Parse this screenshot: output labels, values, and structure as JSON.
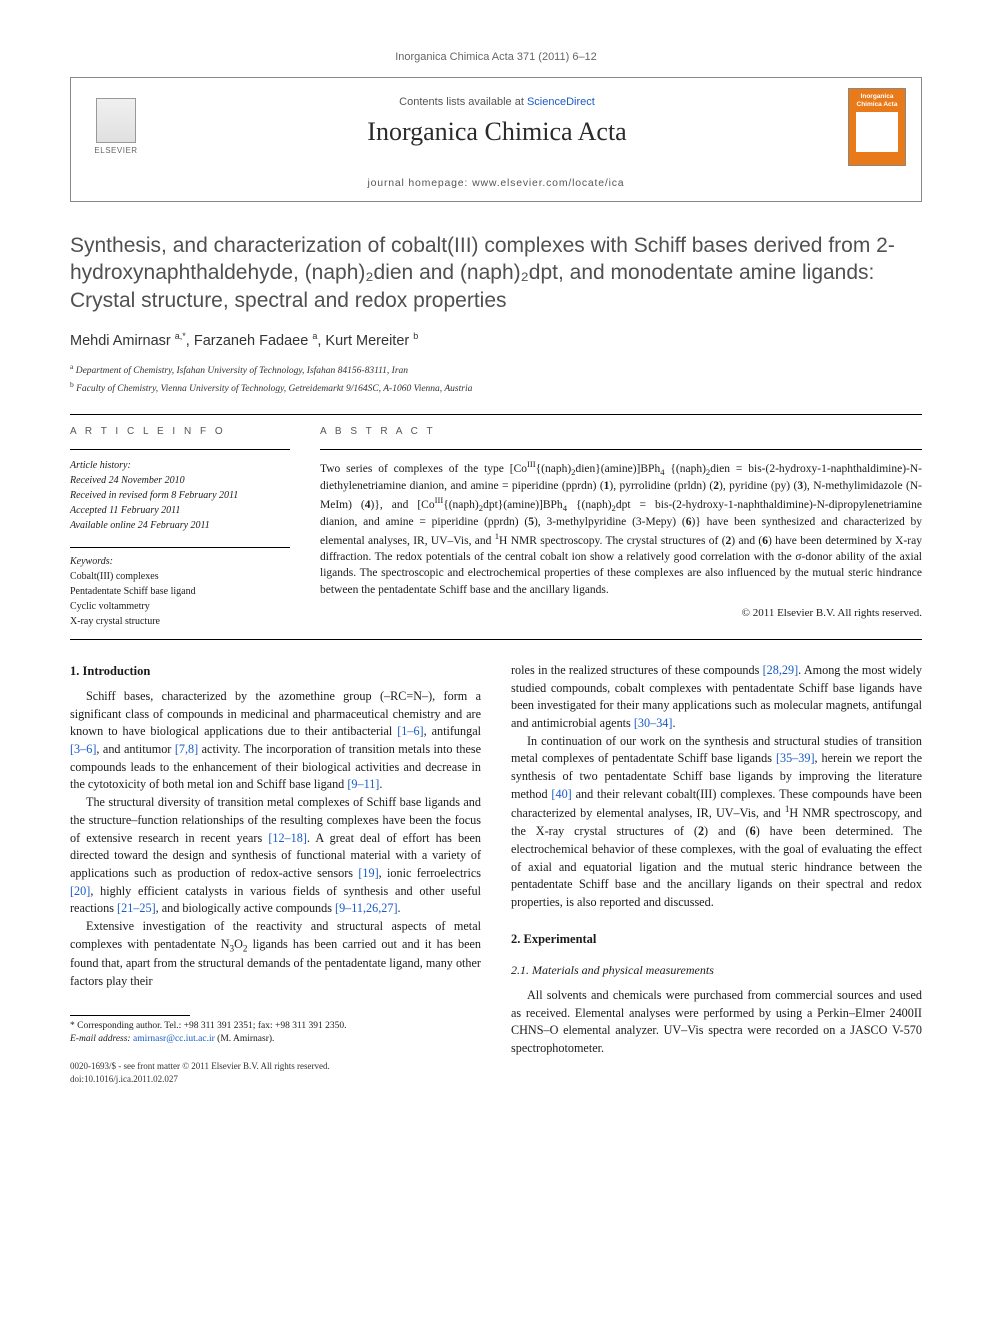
{
  "top_header": "Inorganica Chimica Acta 371 (2011) 6–12",
  "contents_line_prefix": "Contents lists available at ",
  "contents_link": "ScienceDirect",
  "journal_name": "Inorganica Chimica Acta",
  "homepage_prefix": "journal homepage: ",
  "homepage_url": "www.elsevier.com/locate/ica",
  "elsevier_label": "ELSEVIER",
  "cover_title": "Inorganica Chimica Acta",
  "article_title": "Synthesis, and characterization of cobalt(III) complexes with Schiff bases derived from 2-hydroxynaphthaldehyde, (naph)₂dien and (naph)₂dpt, and monodentate amine ligands: Crystal structure, spectral and redox properties",
  "authors_html": "Mehdi Amirnasr <span class='sup'>a,*</span>, Farzaneh Fadaee <span class='sup'>a</span>, Kurt Mereiter <span class='sup'>b</span>",
  "affiliations": [
    {
      "sup": "a",
      "text": "Department of Chemistry, Isfahan University of Technology, Isfahan 84156-83111, Iran"
    },
    {
      "sup": "b",
      "text": "Faculty of Chemistry, Vienna University of Technology, Getreidemarkt 9/164SC, A-1060 Vienna, Austria"
    }
  ],
  "labels": {
    "article_info": "A R T I C L E   I N F O",
    "abstract": "A B S T R A C T",
    "history": "Article history:",
    "keywords": "Keywords:"
  },
  "history": [
    "Received 24 November 2010",
    "Received in revised form 8 February 2011",
    "Accepted 11 February 2011",
    "Available online 24 February 2011"
  ],
  "keywords": [
    "Cobalt(III) complexes",
    "Pentadentate Schiff base ligand",
    "Cyclic voltammetry",
    "X-ray crystal structure"
  ],
  "abstract_html": "Two series of complexes of the type [Co<span class='supn'>III</span>{(naph)<span class='sub'>2</span>dien}(amine)]BPh<span class='sub'>4</span> {(naph)<span class='sub'>2</span>dien = bis-(2-hydroxy-1-naphthaldimine)-N-diethylenetriamine dianion, and amine = piperidine (pprdn) (<b>1</b>), pyrrolidine (prldn) (<b>2</b>), pyridine (py) (<b>3</b>), N-methylimidazole (N-MeIm) (<b>4</b>)}, and [Co<span class='supn'>III</span>{(naph)<span class='sub'>2</span>dpt}(amine)]BPh<span class='sub'>4</span> {(naph)<span class='sub'>2</span>dpt = bis-(2-hydroxy-1-naphthaldimine)-N-dipropylenetriamine dianion, and amine = piperidine (pprdn) (<b>5</b>), 3-methylpyridine (3-Mepy) (<b>6</b>)} have been synthesized and characterized by elemental analyses, IR, UV–Vis, and <span class='supn'>1</span>H NMR spectroscopy. The crystal structures of (<b>2</b>) and (<b>6</b>) have been determined by X-ray diffraction. The redox potentials of the central cobalt ion show a relatively good correlation with the σ-donor ability of the axial ligands. The spectroscopic and electrochemical properties of these complexes are also influenced by the mutual steric hindrance between the pentadentate Schiff base and the ancillary ligands.",
  "copyright": "© 2011 Elsevier B.V. All rights reserved.",
  "sections": {
    "intro_heading": "1. Introduction",
    "exp_heading": "2. Experimental",
    "sub_heading": "2.1. Materials and physical measurements"
  },
  "left_paragraphs": [
    "Schiff bases, characterized by the azomethine group (–RC=N–), form a significant class of compounds in medicinal and pharmaceutical chemistry and are known to have biological applications due to their antibacterial <span class='ref-link'>[1–6]</span>, antifungal <span class='ref-link'>[3–6]</span>, and antitumor <span class='ref-link'>[7,8]</span> activity. The incorporation of transition metals into these compounds leads to the enhancement of their biological activities and decrease in the cytotoxicity of both metal ion and Schiff base ligand <span class='ref-link'>[9–11]</span>.",
    "The structural diversity of transition metal complexes of Schiff base ligands and the structure–function relationships of the resulting complexes have been the focus of extensive research in recent years <span class='ref-link'>[12–18]</span>. A great deal of effort has been directed toward the design and synthesis of functional material with a variety of applications such as production of redox-active sensors <span class='ref-link'>[19]</span>, ionic ferroelectrics <span class='ref-link'>[20]</span>, highly efficient catalysts in various fields of synthesis and other useful reactions <span class='ref-link'>[21–25]</span>, and biologically active compounds <span class='ref-link'>[9–11,26,27]</span>.",
    "Extensive investigation of the reactivity and structural aspects of metal complexes with pentadentate N<span class='sub'>3</span>O<span class='sub'>2</span> ligands has been carried out and it has been found that, apart from the structural demands of the pentadentate ligand, many other factors play their"
  ],
  "right_paragraphs_top": [
    "roles in the realized structures of these compounds <span class='ref-link'>[28,29]</span>. Among the most widely studied compounds, cobalt complexes with pentadentate Schiff base ligands have been investigated for their many applications such as molecular magnets, antifungal and antimicrobial agents <span class='ref-link'>[30–34]</span>.",
    "In continuation of our work on the synthesis and structural studies of transition metal complexes of pentadentate Schiff base ligands <span class='ref-link'>[35–39]</span>, herein we report the synthesis of two pentadentate Schiff base ligands by improving the literature method <span class='ref-link'>[40]</span> and their relevant cobalt(III) complexes. These compounds have been characterized by elemental analyses, IR, UV–Vis, and <span class='supn'>1</span>H NMR spectroscopy, and the X-ray crystal structures of (<b>2</b>) and (<b>6</b>) have been determined. The electrochemical behavior of these complexes, with the goal of evaluating the effect of axial and equatorial ligation and the mutual steric hindrance between the pentadentate Schiff base and the ancillary ligands on their spectral and redox properties, is also reported and discussed."
  ],
  "right_paragraphs_exp": [
    "All solvents and chemicals were purchased from commercial sources and used as received. Elemental analyses were performed by using a Perkin–Elmer 2400II CHNS–O elemental analyzer. UV–Vis spectra were recorded on a JASCO V-570 spectrophotometer."
  ],
  "footnote": {
    "marker": "*",
    "text": "Corresponding author. Tel.: +98 311 391 2351; fax: +98 311 391 2350.",
    "email_label": "E-mail address:",
    "email": "amirnasr@cc.iut.ac.ir",
    "email_suffix": "(M. Amirnasr)."
  },
  "bottom": {
    "line1": "0020-1693/$ - see front matter © 2011 Elsevier B.V. All rights reserved.",
    "line2": "doi:10.1016/j.ica.2011.02.027"
  },
  "colors": {
    "link": "#1a5ac8",
    "cover_bg": "#e87a1a",
    "title_gray": "#505050"
  }
}
